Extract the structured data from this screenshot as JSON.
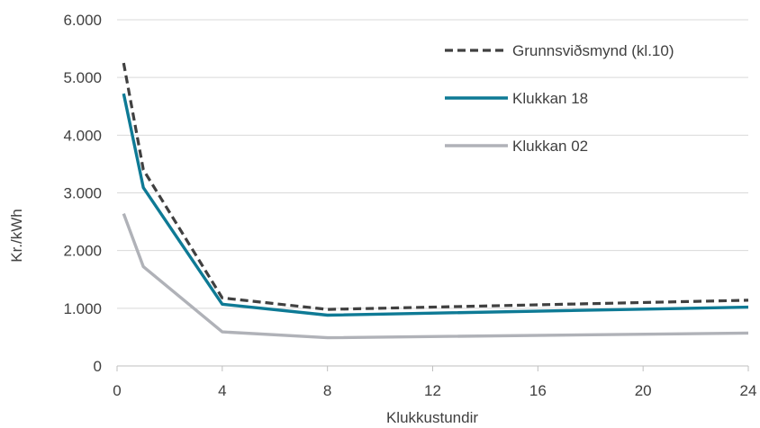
{
  "chart_data": {
    "type": "line",
    "xlabel": "Klukkustundir",
    "ylabel": "Kr./kWh",
    "xlim": [
      0,
      24
    ],
    "ylim": [
      0,
      6000
    ],
    "xticks": [
      0,
      4,
      8,
      12,
      16,
      20,
      24
    ],
    "xtick_labels": [
      "0",
      "4",
      "8",
      "12",
      "16",
      "20",
      "24"
    ],
    "yticks": [
      0,
      1000,
      2000,
      3000,
      4000,
      5000,
      6000
    ],
    "ytick_labels": [
      "0",
      "1.000",
      "2.000",
      "3.000",
      "4.000",
      "5.000",
      "6.000"
    ],
    "grid": "horizontal",
    "legend_position": "top-right",
    "series": [
      {
        "name": "Grunnsviðsmynd (kl.10)",
        "color": "#404040",
        "style": "dashed",
        "x": [
          0.25,
          1,
          4,
          8,
          24
        ],
        "values": [
          5250,
          3400,
          1180,
          980,
          1140
        ]
      },
      {
        "name": "Klukkan 18",
        "color": "#0e7a95",
        "style": "solid",
        "x": [
          0.25,
          1,
          4,
          8,
          24
        ],
        "values": [
          4720,
          3090,
          1070,
          880,
          1020
        ]
      },
      {
        "name": "Klukkan 02",
        "color": "#b0b2b8",
        "style": "solid",
        "x": [
          0.25,
          1,
          4,
          8,
          24
        ],
        "values": [
          2640,
          1720,
          590,
          490,
          570
        ]
      }
    ]
  }
}
